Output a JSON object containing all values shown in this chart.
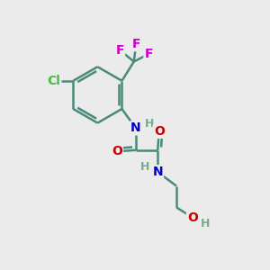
{
  "background_color": "#ebebeb",
  "bond_color": "#4a8a7a",
  "bond_width": 1.8,
  "atom_colors": {
    "C": "#4a8a7a",
    "H": "#7aaa8a",
    "N": "#0000cc",
    "O": "#cc0000",
    "F": "#cc00cc",
    "Cl": "#44bb44"
  },
  "font_size": 10,
  "font_size_H": 9
}
